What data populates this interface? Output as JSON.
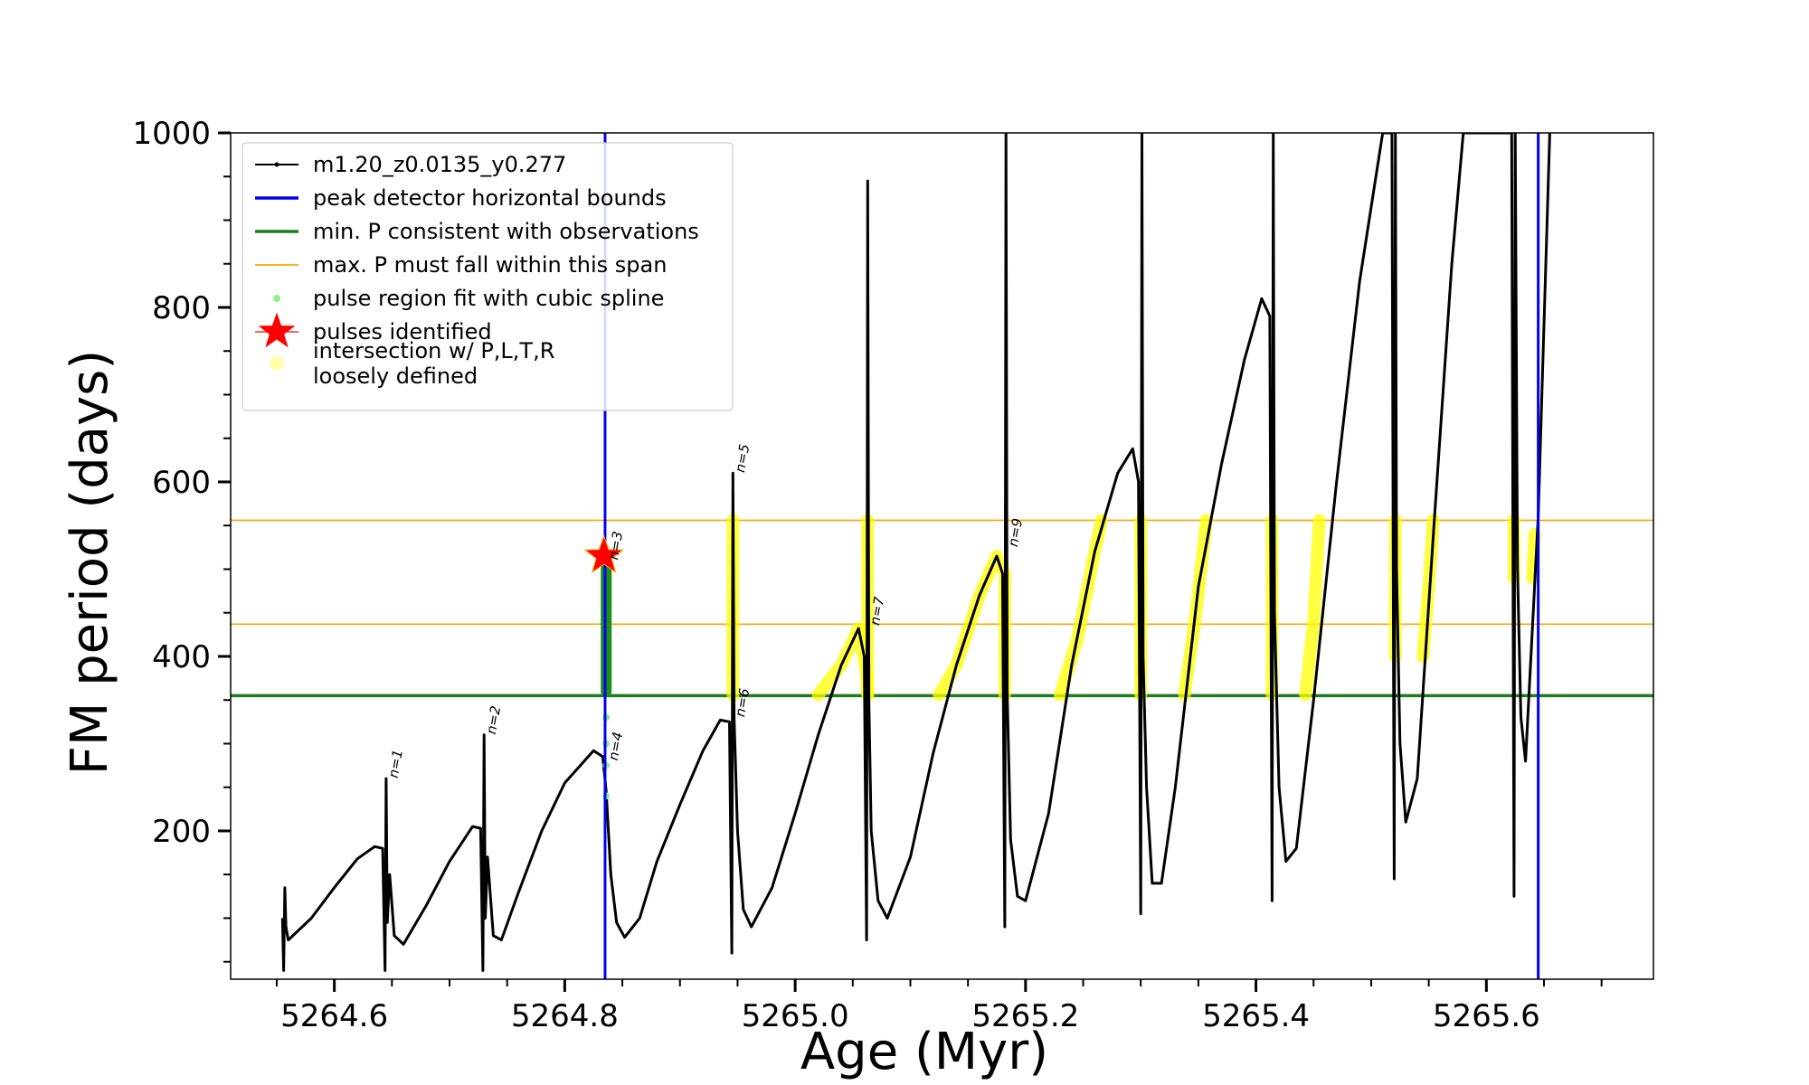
{
  "chart_data": {
    "type": "line",
    "xlabel": "Age (Myr)",
    "ylabel": "FM period (days)",
    "xlim": [
      5264.51,
      5265.745
    ],
    "ylim": [
      30,
      1000
    ],
    "x_ticks": [
      5264.6,
      5264.8,
      5265.0,
      5265.2,
      5265.4,
      5265.6
    ],
    "x_tick_labels": [
      "5264.6",
      "5264.8",
      "5265.0",
      "5265.2",
      "5265.4",
      "5265.6"
    ],
    "y_ticks": [
      200,
      400,
      600,
      800,
      1000
    ],
    "y_tick_labels": [
      "200",
      "400",
      "600",
      "800",
      "1000"
    ],
    "grid": false,
    "legend_position": "upper-left",
    "legend": [
      {
        "label": "m1.20_z0.0135_y0.277",
        "kind": "line-marker",
        "color": "#000000"
      },
      {
        "label": "peak detector horizontal bounds",
        "kind": "line",
        "color": "#0000ee"
      },
      {
        "label": "min. P consistent with observations",
        "kind": "line",
        "color": "#1a7f1a"
      },
      {
        "label": "max. P must fall within this span",
        "kind": "line",
        "color": "#ffa500"
      },
      {
        "label": "pulse region fit with cubic spline",
        "kind": "dot",
        "color": "#90ee90"
      },
      {
        "label": "pulses identified",
        "kind": "star",
        "color": "#ff0000"
      },
      {
        "label": "intersection w/ P,L,T,R",
        "label2": "loosely defined",
        "kind": "dot",
        "color": "#ffffaa"
      }
    ],
    "vlines": [
      {
        "name": "peak detector horizontal bounds",
        "x": [
          5264.835,
          5265.645
        ],
        "color": "#0000ee"
      }
    ],
    "hlines": [
      {
        "name": "min. P consistent with observations",
        "y": 355,
        "color": "#1a7f1a"
      },
      {
        "name": "max. P must fall within this span",
        "y": [
          437,
          556
        ],
        "color": "#ffa500"
      }
    ],
    "series": [
      {
        "name": "m1.20_z0.0135_y0.277",
        "color": "#000000",
        "points": [
          [
            5264.555,
            100
          ],
          [
            5264.556,
            40
          ],
          [
            5264.557,
            135
          ],
          [
            5264.558,
            90
          ],
          [
            5264.56,
            75
          ],
          [
            5264.58,
            100
          ],
          [
            5264.6,
            135
          ],
          [
            5264.62,
            168
          ],
          [
            5264.635,
            182
          ],
          [
            5264.642,
            180
          ],
          [
            5264.644,
            40
          ],
          [
            5264.645,
            260
          ],
          [
            5264.646,
            95
          ],
          [
            5264.648,
            150
          ],
          [
            5264.652,
            80
          ],
          [
            5264.66,
            70
          ],
          [
            5264.68,
            115
          ],
          [
            5264.7,
            165
          ],
          [
            5264.72,
            205
          ],
          [
            5264.727,
            203
          ],
          [
            5264.729,
            40
          ],
          [
            5264.73,
            310
          ],
          [
            5264.731,
            100
          ],
          [
            5264.733,
            170
          ],
          [
            5264.738,
            80
          ],
          [
            5264.745,
            75
          ],
          [
            5264.76,
            130
          ],
          [
            5264.78,
            200
          ],
          [
            5264.8,
            255
          ],
          [
            5264.825,
            292
          ],
          [
            5264.833,
            285
          ],
          [
            5264.836,
            245
          ],
          [
            5264.84,
            150
          ],
          [
            5264.845,
            95
          ],
          [
            5264.852,
            78
          ],
          [
            5264.865,
            100
          ],
          [
            5264.88,
            165
          ],
          [
            5264.9,
            230
          ],
          [
            5264.92,
            292
          ],
          [
            5264.935,
            327
          ],
          [
            5264.943,
            325
          ],
          [
            5264.945,
            60
          ],
          [
            5264.946,
            610
          ],
          [
            5264.947,
            330
          ],
          [
            5264.95,
            200
          ],
          [
            5264.955,
            110
          ],
          [
            5264.962,
            90
          ],
          [
            5264.98,
            135
          ],
          [
            5265.0,
            220
          ],
          [
            5265.02,
            310
          ],
          [
            5265.04,
            390
          ],
          [
            5265.055,
            432
          ],
          [
            5265.06,
            400
          ],
          [
            5265.062,
            75
          ],
          [
            5265.063,
            945
          ],
          [
            5265.064,
            350
          ],
          [
            5265.066,
            200
          ],
          [
            5265.072,
            120
          ],
          [
            5265.08,
            100
          ],
          [
            5265.1,
            170
          ],
          [
            5265.12,
            290
          ],
          [
            5265.14,
            390
          ],
          [
            5265.16,
            470
          ],
          [
            5265.175,
            515
          ],
          [
            5265.18,
            495
          ],
          [
            5265.182,
            90
          ],
          [
            5265.183,
            1000
          ],
          [
            5265.184,
            360
          ],
          [
            5265.187,
            190
          ],
          [
            5265.193,
            125
          ],
          [
            5265.2,
            120
          ],
          [
            5265.22,
            220
          ],
          [
            5265.24,
            390
          ],
          [
            5265.26,
            520
          ],
          [
            5265.28,
            610
          ],
          [
            5265.293,
            638
          ],
          [
            5265.298,
            600
          ],
          [
            5265.3,
            105
          ],
          [
            5265.301,
            1000
          ],
          [
            5265.302,
            400
          ],
          [
            5265.305,
            250
          ],
          [
            5265.31,
            140
          ],
          [
            5265.318,
            140
          ],
          [
            5265.33,
            250
          ],
          [
            5265.35,
            480
          ],
          [
            5265.37,
            620
          ],
          [
            5265.39,
            740
          ],
          [
            5265.405,
            810
          ],
          [
            5265.412,
            790
          ],
          [
            5265.414,
            120
          ],
          [
            5265.415,
            1000
          ],
          [
            5265.416,
            450
          ],
          [
            5265.42,
            250
          ],
          [
            5265.426,
            165
          ],
          [
            5265.435,
            180
          ],
          [
            5265.45,
            350
          ],
          [
            5265.47,
            600
          ],
          [
            5265.49,
            830
          ],
          [
            5265.51,
            1000
          ],
          [
            5265.518,
            1000
          ],
          [
            5265.52,
            145
          ],
          [
            5265.521,
            1000
          ],
          [
            5265.522,
            500
          ],
          [
            5265.525,
            300
          ],
          [
            5265.53,
            210
          ],
          [
            5265.54,
            260
          ],
          [
            5265.555,
            560
          ],
          [
            5265.57,
            850
          ],
          [
            5265.58,
            1000
          ],
          [
            5265.622,
            1000
          ],
          [
            5265.624,
            125
          ],
          [
            5265.625,
            1000
          ],
          [
            5265.627,
            500
          ],
          [
            5265.63,
            330
          ],
          [
            5265.634,
            280
          ],
          [
            5265.645,
            560
          ],
          [
            5265.655,
            1000
          ]
        ]
      },
      {
        "name": "pulse region fit with cubic spline",
        "color": "#90ee90",
        "x": 5264.836,
        "y": [
          240,
          275,
          300,
          330
        ]
      },
      {
        "name": "intersection w/ P,L,T,R loosely defined",
        "color": "#ffff00",
        "segments": [
          [
            [
              5264.946,
              356
            ],
            [
              5264.946,
              556
            ]
          ],
          [
            [
              5265.063,
              356
            ],
            [
              5265.063,
              556
            ]
          ],
          [
            [
              5265.02,
              356
            ],
            [
              5265.04,
              390
            ],
            [
              5265.055,
              432
            ],
            [
              5265.062,
              380
            ],
            [
              5265.063,
              356
            ]
          ],
          [
            [
              5265.125,
              356
            ],
            [
              5265.14,
              390
            ],
            [
              5265.16,
              470
            ],
            [
              5265.175,
              515
            ],
            [
              5265.182,
              495
            ],
            [
              5265.182,
              356
            ]
          ],
          [
            [
              5265.23,
              356
            ],
            [
              5265.245,
              420
            ],
            [
              5265.26,
              520
            ],
            [
              5265.266,
              556
            ]
          ],
          [
            [
              5265.3,
              356
            ],
            [
              5265.3,
              556
            ]
          ],
          [
            [
              5265.338,
              356
            ],
            [
              5265.348,
              450
            ],
            [
              5265.357,
              556
            ]
          ],
          [
            [
              5265.414,
              356
            ],
            [
              5265.414,
              556
            ]
          ],
          [
            [
              5265.443,
              356
            ],
            [
              5265.45,
              440
            ],
            [
              5265.455,
              556
            ]
          ],
          [
            [
              5265.521,
              400
            ],
            [
              5265.521,
              556
            ]
          ],
          [
            [
              5265.545,
              400
            ],
            [
              5265.55,
              480
            ],
            [
              5265.554,
              556
            ]
          ],
          [
            [
              5265.624,
              490
            ],
            [
              5265.624,
              556
            ]
          ],
          [
            [
              5265.64,
              490
            ],
            [
              5265.642,
              540
            ]
          ]
        ]
      },
      {
        "name": "pulse green band",
        "color": "#1a8f1a",
        "x": 5264.836,
        "y": [
          360,
          500
        ]
      }
    ],
    "pulses_identified": [
      {
        "x": 5264.834,
        "y": 515,
        "marker": "star",
        "color": "#ff0000"
      }
    ],
    "annotations": [
      {
        "text": "n=1",
        "x": 5264.647,
        "y": 260
      },
      {
        "text": "n=2",
        "x": 5264.732,
        "y": 310
      },
      {
        "text": "n=3",
        "x": 5264.838,
        "y": 510
      },
      {
        "text": "n=4",
        "x": 5264.838,
        "y": 280
      },
      {
        "text": "n=5",
        "x": 5264.948,
        "y": 610
      },
      {
        "text": "n=6",
        "x": 5264.948,
        "y": 330
      },
      {
        "text": "n=7",
        "x": 5265.065,
        "y": 435
      },
      {
        "text": "n=9",
        "x": 5265.185,
        "y": 525
      }
    ]
  }
}
